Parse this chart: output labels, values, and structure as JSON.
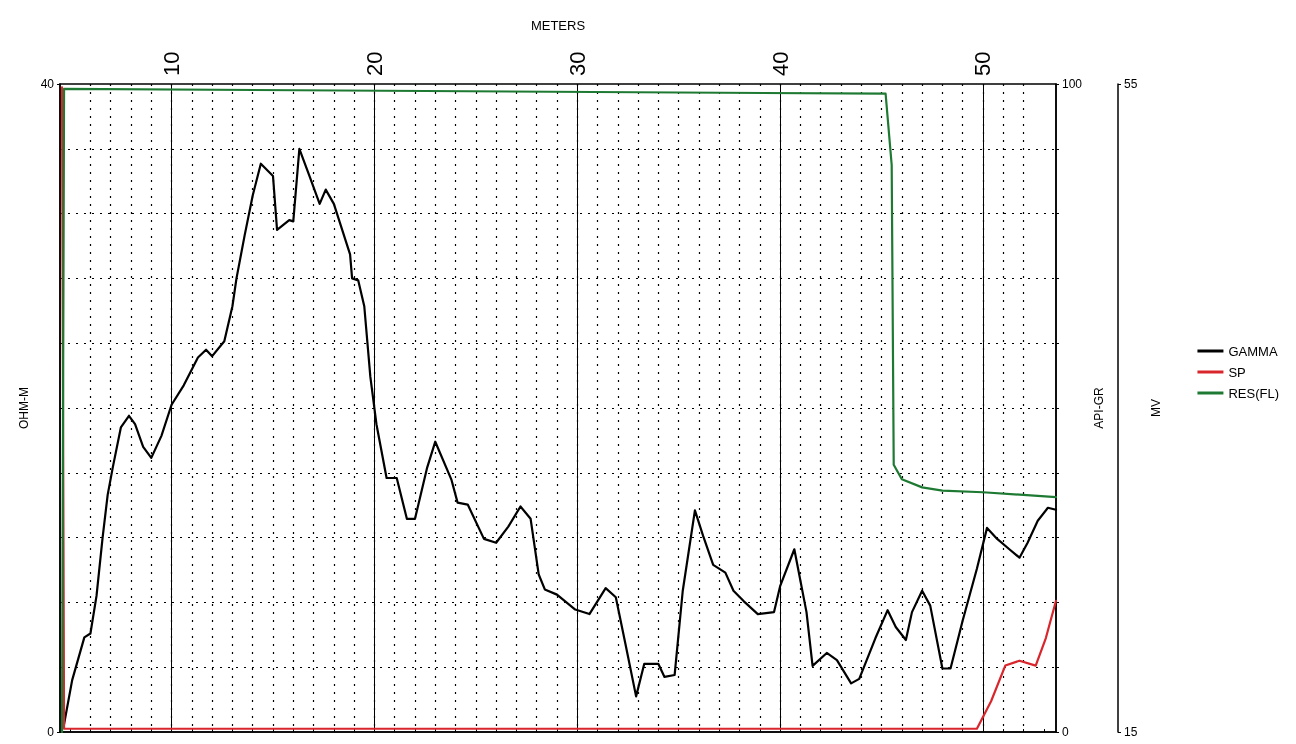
{
  "chart_data": {
    "type": "line",
    "xlabel": "METERS",
    "ylabel": "API-GR",
    "y2label": "MV",
    "y3label": "OHM-M",
    "xlim": [
      4.5,
      53.6
    ],
    "xticks": [
      {
        "value": 5,
        "label": null
      },
      {
        "value": 6,
        "label": null
      },
      {
        "value": 7,
        "label": null
      },
      {
        "value": 8,
        "label": null
      },
      {
        "value": 9,
        "label": null
      },
      10,
      {
        "value": 11,
        "label": null
      },
      {
        "value": 12,
        "label": null
      },
      {
        "value": 13,
        "label": null
      },
      {
        "value": 14,
        "label": null
      },
      {
        "value": 15,
        "label": null
      },
      {
        "value": 16,
        "label": null
      },
      {
        "value": 17,
        "label": null
      },
      {
        "value": 18,
        "label": null
      },
      {
        "value": 19,
        "label": null
      },
      20,
      {
        "value": 21,
        "label": null
      },
      {
        "value": 22,
        "label": null
      },
      {
        "value": 23,
        "label": null
      },
      {
        "value": 24,
        "label": null
      },
      {
        "value": 25,
        "label": null
      },
      {
        "value": 26,
        "label": null
      },
      {
        "value": 27,
        "label": null
      },
      {
        "value": 28,
        "label": null
      },
      {
        "value": 29,
        "label": null
      },
      30,
      {
        "value": 31,
        "label": null
      },
      {
        "value": 32,
        "label": null
      },
      {
        "value": 33,
        "label": null
      },
      {
        "value": 34,
        "label": null
      },
      {
        "value": 35,
        "label": null
      },
      {
        "value": 36,
        "label": null
      },
      {
        "value": 37,
        "label": null
      },
      {
        "value": 38,
        "label": null
      },
      {
        "value": 39,
        "label": null
      },
      40,
      {
        "value": 41,
        "label": null
      },
      {
        "value": 42,
        "label": null
      },
      {
        "value": 43,
        "label": null
      },
      {
        "value": 44,
        "label": null
      },
      {
        "value": 45,
        "label": null
      },
      {
        "value": 46,
        "label": null
      },
      {
        "value": 47,
        "label": null
      },
      {
        "value": 48,
        "label": null
      },
      {
        "value": 49,
        "label": null
      },
      50,
      {
        "value": 51,
        "label": null
      },
      {
        "value": 52,
        "label": null
      },
      {
        "value": 53,
        "label": null
      }
    ],
    "ylim": [
      0,
      100
    ],
    "yticks": [
      0,
      {
        "value": 10,
        "label": null
      },
      {
        "value": 20,
        "label": null
      },
      {
        "value": 30,
        "label": null
      },
      {
        "value": 40,
        "label": null
      },
      {
        "value": 50,
        "label": null
      },
      {
        "value": 60,
        "label": null
      },
      {
        "value": 70,
        "label": null
      },
      {
        "value": 80,
        "label": null
      },
      {
        "value": 90,
        "label": null
      },
      100
    ],
    "y2lim": [
      15,
      55
    ],
    "y2ticks": [
      15,
      55
    ],
    "y3lim": [
      0,
      40
    ],
    "y3ticks": [
      0,
      40
    ],
    "grid": true,
    "legend": "right",
    "marker": "none",
    "series": [
      {
        "name": "GAMMA",
        "color": "#000000",
        "x": [
          4.7,
          5.1,
          5.7,
          6.0,
          6.3,
          6.6,
          6.85,
          7.1,
          7.5,
          7.9,
          8.2,
          8.6,
          9.0,
          9.5,
          10.0,
          10.6,
          11.3,
          11.7,
          12.0,
          12.6,
          13.0,
          13.2,
          13.6,
          14.0,
          14.4,
          15.0,
          15.2,
          15.8,
          16.0,
          16.3,
          16.8,
          17.3,
          17.6,
          18.0,
          18.8,
          18.9,
          19.2,
          19.5,
          19.8,
          20.1,
          20.6,
          21.1,
          21.6,
          22.0,
          22.6,
          23.0,
          23.8,
          24.1,
          24.6,
          25.4,
          26.0,
          26.6,
          27.2,
          27.7,
          28.1,
          28.4,
          29.0,
          29.9,
          30.6,
          31.4,
          31.9,
          32.4,
          32.9,
          33.3,
          34.0,
          34.3,
          34.8,
          35.2,
          35.8,
          36.2,
          36.7,
          37.3,
          37.7,
          38.2,
          38.9,
          39.7,
          40.0,
          40.7,
          41.3,
          41.6,
          42.3,
          42.8,
          43.5,
          43.9,
          44.7,
          45.3,
          45.7,
          46.2,
          46.5,
          47.0,
          47.4,
          48.0,
          48.4,
          49.0,
          49.7,
          50.2,
          50.7,
          51.3,
          51.8,
          52.2,
          52.7,
          53.2,
          53.6
        ],
        "values": [
          1.2,
          8,
          14.6,
          15.2,
          21,
          30,
          36.6,
          40.8,
          47,
          48.8,
          47.5,
          44,
          42.3,
          45.7,
          50.5,
          53.5,
          57.8,
          59,
          58,
          60.3,
          65.7,
          70,
          76.6,
          82.8,
          87.7,
          85.8,
          77.5,
          79,
          78.8,
          90,
          85.8,
          81.5,
          83.7,
          81.5,
          73.7,
          70,
          69.7,
          65.7,
          54.8,
          47.5,
          39.2,
          39.2,
          32.9,
          32.9,
          40.8,
          44.8,
          38.9,
          35.4,
          35.1,
          29.8,
          29.2,
          31.7,
          34.8,
          32.9,
          24.3,
          22,
          21.2,
          18.9,
          18.2,
          22.2,
          20.8,
          13.2,
          5.5,
          10.5,
          10.5,
          8.5,
          8.8,
          21.8,
          34.2,
          30.3,
          25.8,
          24.6,
          21.8,
          20.2,
          18.2,
          18.5,
          22.5,
          28.2,
          18.5,
          10.2,
          12.2,
          11.1,
          7.5,
          8.2,
          14.5,
          18.8,
          16.2,
          14.2,
          18.5,
          21.8,
          19.5,
          9.8,
          9.8,
          17.2,
          25.2,
          31.5,
          29.8,
          28.2,
          26.9,
          29.2,
          32.6,
          34.6,
          34.3
        ]
      },
      {
        "name": "SP",
        "color": "#d8262c",
        "axis": "y2",
        "x": [
          4.6,
          4.7,
          20,
          40,
          49.7,
          50.4,
          51.1,
          51.8,
          52.6,
          53.1,
          53.6
        ],
        "values": [
          54.8,
          15.2,
          15.2,
          15.2,
          15.2,
          16.9,
          19.1,
          19.4,
          19.1,
          20.8,
          23.1
        ]
      },
      {
        "name": "RES(FL)",
        "color": "#1e7a32",
        "axis": "y3",
        "x": [
          4.6,
          4.7,
          45.2,
          45.5,
          45.6,
          46.0,
          47,
          48,
          50,
          53.6
        ],
        "values": [
          0,
          39.7,
          39.4,
          35,
          16.5,
          15.6,
          15.1,
          14.9,
          14.8,
          14.5
        ]
      }
    ]
  }
}
